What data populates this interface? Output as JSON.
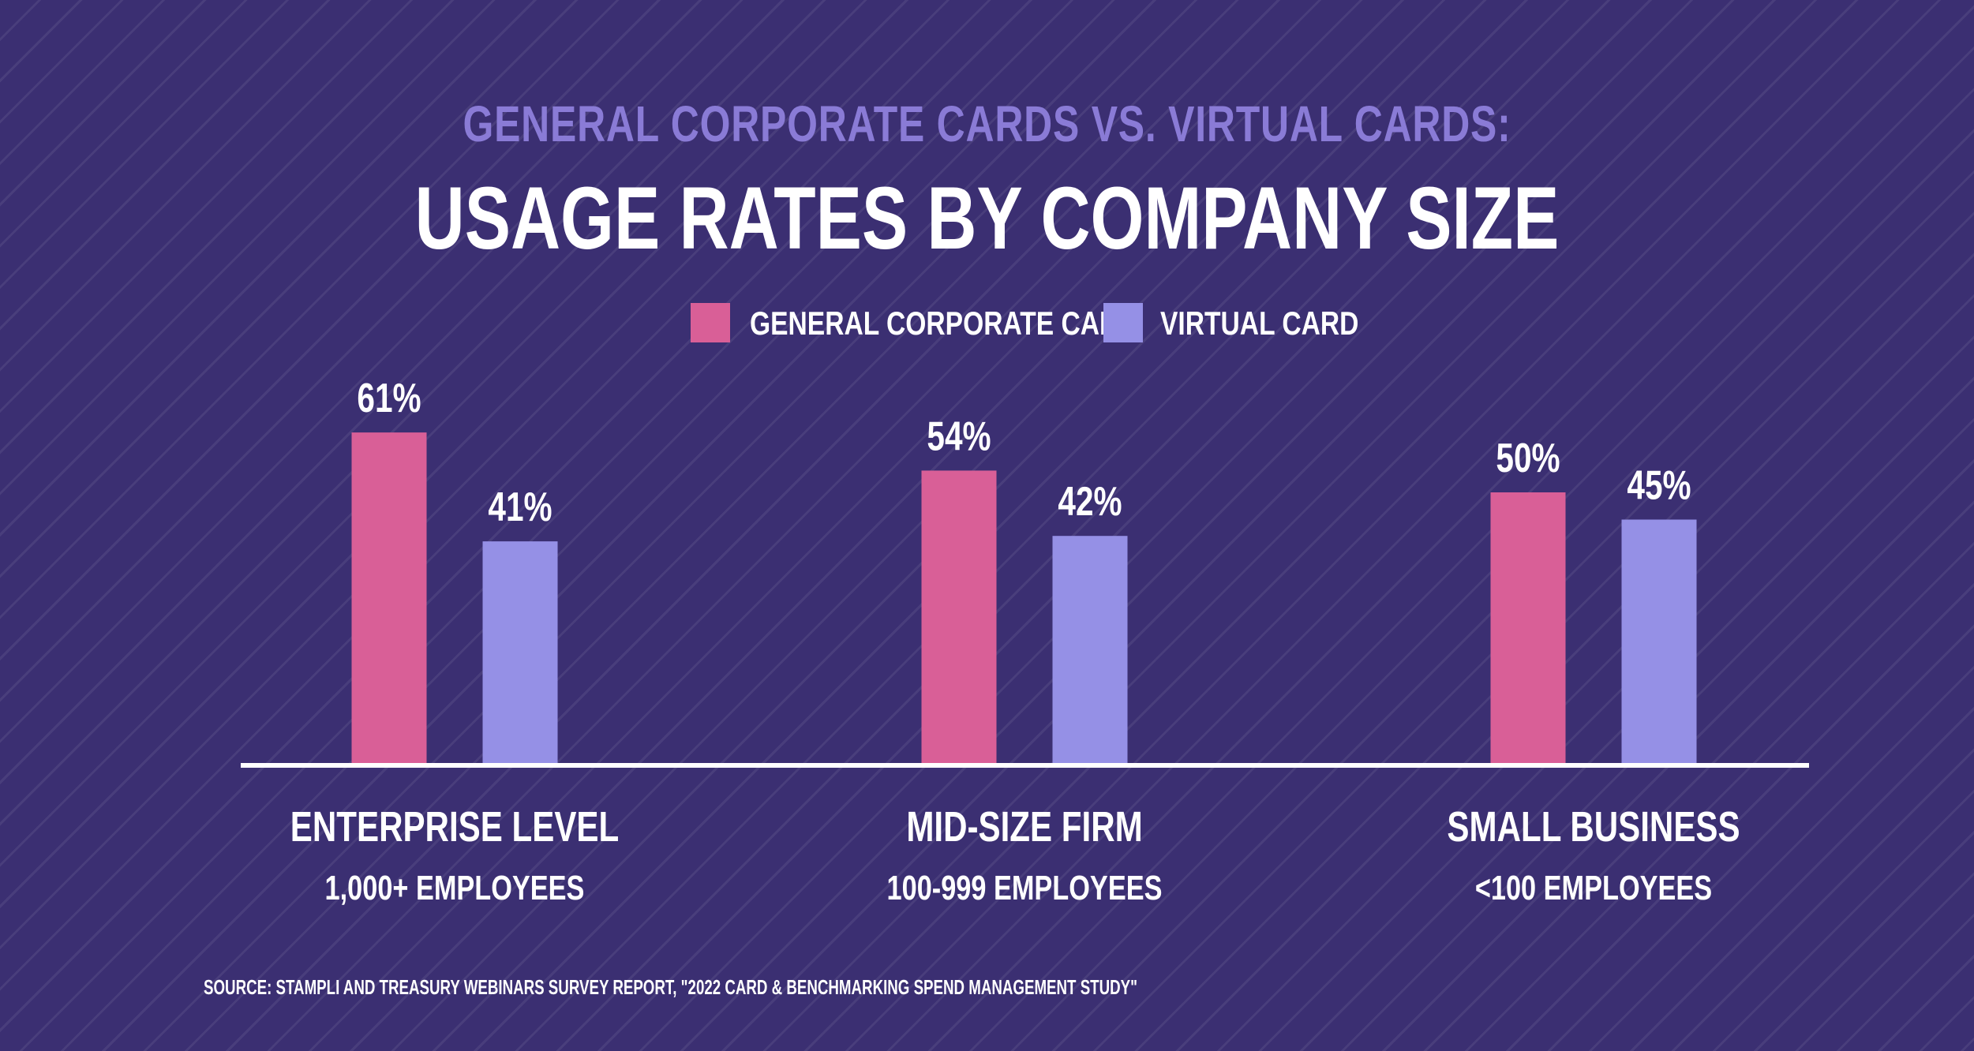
{
  "header": {
    "subtitle": "GENERAL CORPORATE CARDS VS. VIRTUAL CARDS:",
    "title": "USAGE RATES BY COMPANY SIZE"
  },
  "legend": {
    "items": [
      {
        "label": "GENERAL CORPORATE CARD",
        "color": "#d95f97"
      },
      {
        "label": "VIRTUAL CARD",
        "color": "#9590e6"
      }
    ]
  },
  "source": "SOURCE: STAMPLI AND TREASURY WEBINARS SURVEY REPORT, \"2022 CARD & BENCHMARKING SPEND MANAGEMENT STUDY\"",
  "chart_data": {
    "type": "bar",
    "categories": [
      "ENTERPRISE LEVEL",
      "MID-SIZE FIRM",
      "SMALL BUSINESS"
    ],
    "category_sublabels": [
      "1,000+ EMPLOYEES",
      "100-999 EMPLOYEES",
      "<100 EMPLOYEES"
    ],
    "series": [
      {
        "name": "GENERAL CORPORATE CARD",
        "values": [
          61,
          54,
          50
        ],
        "labels": [
          "61%",
          "54%",
          "50%"
        ],
        "color": "#d95f97"
      },
      {
        "name": "VIRTUAL CARD",
        "values": [
          41,
          42,
          45
        ],
        "labels": [
          "41%",
          "42%",
          "45%"
        ],
        "color": "#9590e6"
      }
    ],
    "unit": "%",
    "ylim": [
      0,
      100
    ],
    "grid": false,
    "legend_position": "top-center",
    "axis_color": "#ffffff"
  }
}
